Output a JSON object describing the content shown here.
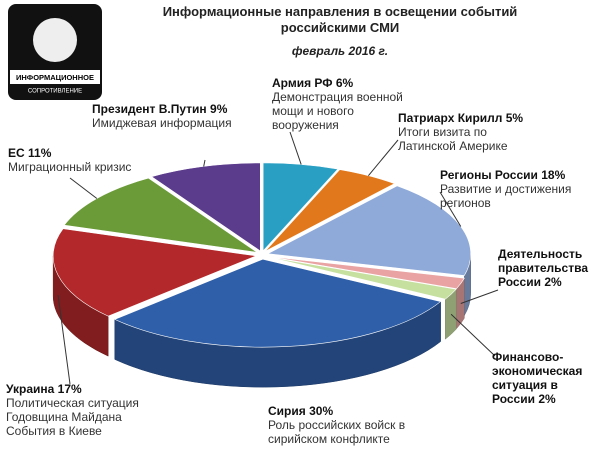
{
  "chart_data": {
    "type": "pie3d",
    "title": "Информационные направления  в освещении событий российскими СМИ",
    "subtitle": "февраль 2016 г.",
    "logo": {
      "title": "ИНФОРМАЦИОННОЕ",
      "subtitle": "СОПРОТИВЛЕНИЕ"
    },
    "categories": [
      "Армия РФ",
      "Патриарх Кирилл",
      "Регионы России",
      "Деятельность правительства России",
      "Финансово-экономическая ситуация в России",
      "Сирия",
      "Украина",
      "ЕС",
      "Президент В.Путин"
    ],
    "values": [
      6,
      5,
      18,
      2,
      2,
      30,
      17,
      11,
      9
    ],
    "value_labels": [
      "6%",
      "5%",
      "18%",
      "2%",
      "2%",
      "30%",
      "17%",
      "11%",
      "9%"
    ],
    "descriptions": [
      [
        "Демонстрация военной",
        "мощи и нового",
        "вооружения"
      ],
      [
        "Итоги визита по",
        "Латинской  Америке"
      ],
      [
        "Развитие и достижения",
        "регионов"
      ],
      null,
      null,
      [
        "Роль российских войск в",
        "сирийском конфликте"
      ],
      [
        "Политическая ситуация",
        "Годовщина Майдана",
        "События в Киеве"
      ],
      [
        "Миграционный кризис"
      ],
      [
        "Имиджевая информация"
      ]
    ],
    "colors": [
      "#2a9fc4",
      "#e2781c",
      "#8faad9",
      "#e9a3a3",
      "#c6e0a0",
      "#2f5fa8",
      "#b3282a",
      "#6b9b38",
      "#5b3b8c"
    ]
  }
}
